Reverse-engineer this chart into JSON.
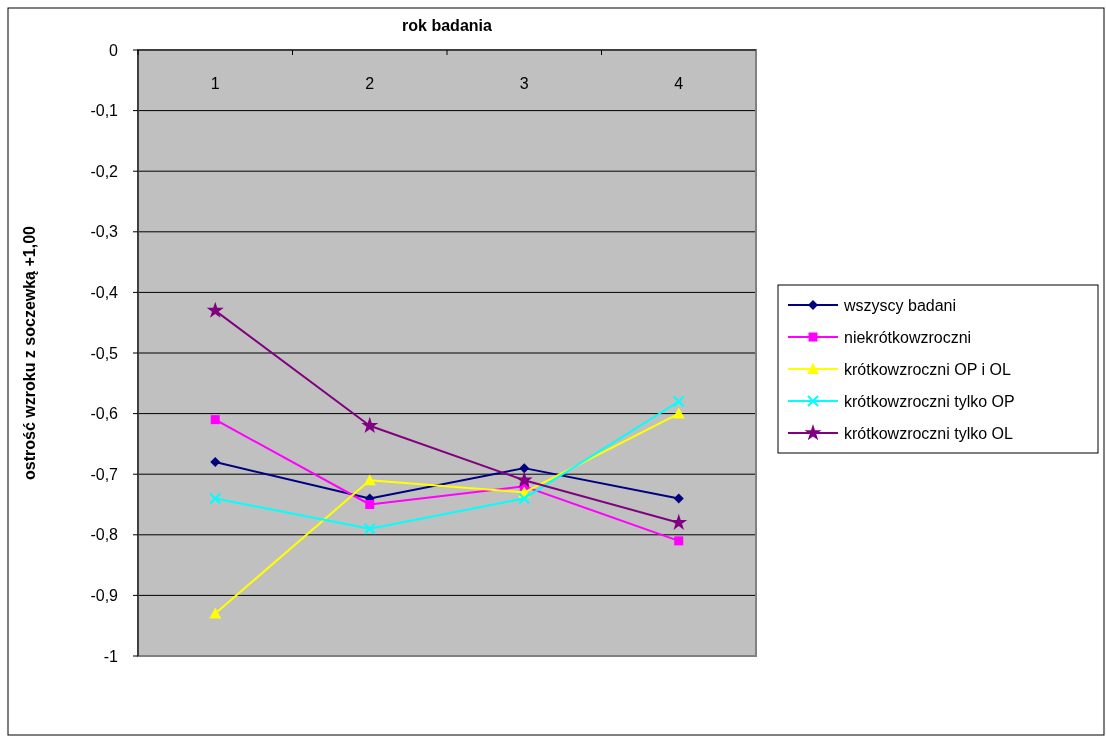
{
  "chart_data": {
    "type": "line",
    "xlabel": "rok badania",
    "ylabel": "ostrość wzroku z soczewką +1,00",
    "categories": [
      "1",
      "2",
      "3",
      "4"
    ],
    "ylim": [
      -1,
      0
    ],
    "yticks": [
      {
        "value": 0,
        "label": "0"
      },
      {
        "value": -0.1,
        "label": "-0,1"
      },
      {
        "value": -0.2,
        "label": "-0,2"
      },
      {
        "value": -0.3,
        "label": "-0,3"
      },
      {
        "value": -0.4,
        "label": "-0,4"
      },
      {
        "value": -0.5,
        "label": "-0,5"
      },
      {
        "value": -0.6,
        "label": "-0,6"
      },
      {
        "value": -0.7,
        "label": "-0,7"
      },
      {
        "value": -0.8,
        "label": "-0,8"
      },
      {
        "value": -0.9,
        "label": "-0,9"
      },
      {
        "value": -1,
        "label": "-1"
      }
    ],
    "grid": "y",
    "legend": "right",
    "series": [
      {
        "name": "wszyscy badani",
        "color": "#000080",
        "marker": "diamond",
        "values": [
          -0.68,
          -0.74,
          -0.69,
          -0.74
        ]
      },
      {
        "name": "niekrótkowzroczni",
        "color": "#ff00ff",
        "marker": "square",
        "values": [
          -0.61,
          -0.75,
          -0.72,
          -0.81
        ]
      },
      {
        "name": "krótkowzroczni OP i OL",
        "color": "#ffff00",
        "marker": "triangle",
        "values": [
          -0.93,
          -0.71,
          -0.73,
          -0.6
        ]
      },
      {
        "name": "krótkowzroczni tylko OP",
        "color": "#00ffff",
        "marker": "cross",
        "values": [
          -0.74,
          -0.79,
          -0.74,
          -0.58
        ]
      },
      {
        "name": "krótkowzroczni tylko OL",
        "color": "#800080",
        "marker": "star",
        "values": [
          -0.43,
          -0.62,
          -0.71,
          -0.78
        ]
      }
    ]
  }
}
